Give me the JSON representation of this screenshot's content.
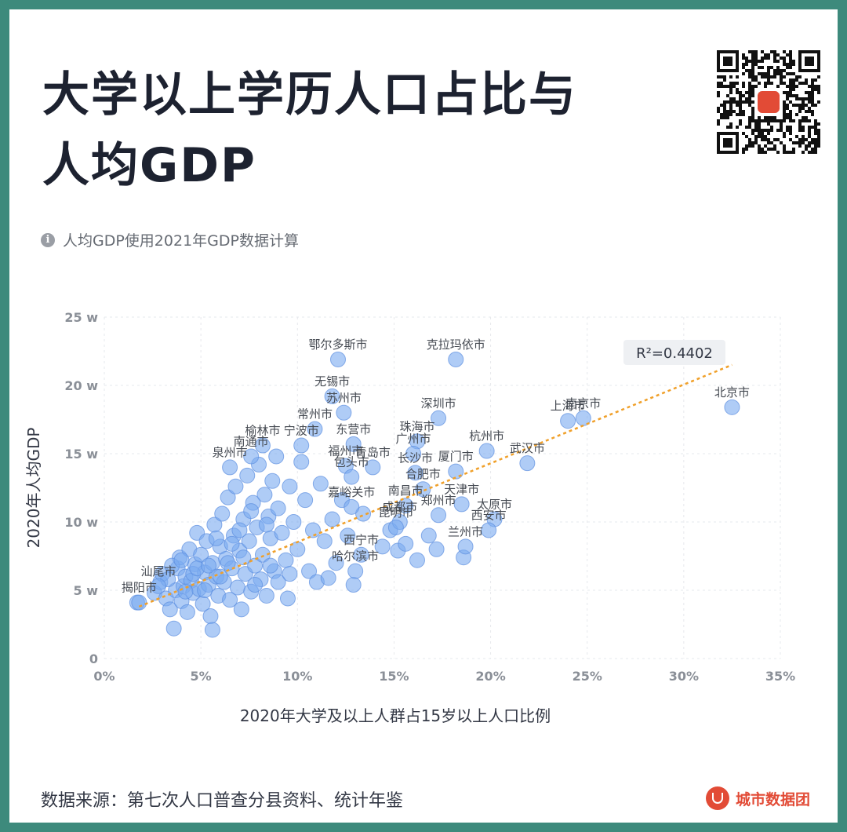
{
  "title_line1": "大学以上学历人口占比与",
  "title_line2": "人均GDP",
  "note": "人均GDP使用2021年GDP数据计算",
  "source": "数据来源：第七次人口普查分县资料、统计年鉴",
  "brand": "城市数据团",
  "icons": {
    "info": "info-icon",
    "qr": "qr-code-icon",
    "brand": "brand-logo-icon"
  },
  "colors": {
    "point": "#7aaaf0",
    "trend": "#f0a02a",
    "text": "#1d2230",
    "background": "#3d8a7c"
  },
  "chart_data": {
    "type": "scatter",
    "xlabel": "2020年大学及以上人群占15岁以上人口比例",
    "ylabel": "2020年人均GDP",
    "x_ticks": [
      "0%",
      "5%",
      "10%",
      "15%",
      "20%",
      "25%",
      "30%",
      "35%"
    ],
    "y_ticks": [
      "0",
      "5 w",
      "10 w",
      "15 w",
      "20 w",
      "25 w"
    ],
    "xlim": [
      0,
      35
    ],
    "ylim": [
      0,
      25
    ],
    "grid": true,
    "legend": "none",
    "trendline": {
      "type": "linear",
      "from": [
        1.8,
        3.8
      ],
      "to": [
        32.5,
        21.5
      ],
      "label": "R²=0.4402"
    },
    "labeled_points": [
      {
        "label": "鄂尔多斯市",
        "x": 12.1,
        "y": 21.9
      },
      {
        "label": "克拉玛依市",
        "x": 18.2,
        "y": 21.9
      },
      {
        "label": "北京市",
        "x": 32.5,
        "y": 18.4
      },
      {
        "label": "南京市",
        "x": 24.8,
        "y": 17.6
      },
      {
        "label": "上海市",
        "x": 24.0,
        "y": 17.4
      },
      {
        "label": "无锡市",
        "x": 11.8,
        "y": 19.2
      },
      {
        "label": "苏州市",
        "x": 12.4,
        "y": 18.0
      },
      {
        "label": "常州市",
        "x": 10.9,
        "y": 16.8
      },
      {
        "label": "深圳市",
        "x": 17.3,
        "y": 17.6
      },
      {
        "label": "珠海市",
        "x": 16.2,
        "y": 15.9
      },
      {
        "label": "广州市",
        "x": 16.0,
        "y": 15.0
      },
      {
        "label": "杭州市",
        "x": 19.8,
        "y": 15.2
      },
      {
        "label": "武汉市",
        "x": 21.9,
        "y": 14.3
      },
      {
        "label": "厦门市",
        "x": 18.2,
        "y": 13.7
      },
      {
        "label": "宁波市",
        "x": 10.2,
        "y": 15.6
      },
      {
        "label": "东营市",
        "x": 12.9,
        "y": 15.7
      },
      {
        "label": "福州市",
        "x": 12.5,
        "y": 14.1
      },
      {
        "label": "青岛市",
        "x": 13.9,
        "y": 14.0
      },
      {
        "label": "包头市",
        "x": 12.8,
        "y": 13.3
      },
      {
        "label": "长沙市",
        "x": 16.1,
        "y": 13.6
      },
      {
        "label": "合肥市",
        "x": 16.5,
        "y": 12.4
      },
      {
        "label": "天津市",
        "x": 18.5,
        "y": 11.3
      },
      {
        "label": "嘉峪关市",
        "x": 12.8,
        "y": 11.1
      },
      {
        "label": "南昌市",
        "x": 15.6,
        "y": 11.2
      },
      {
        "label": "成都市",
        "x": 15.3,
        "y": 10.0
      },
      {
        "label": "太原市",
        "x": 20.2,
        "y": 10.2
      },
      {
        "label": "西安市",
        "x": 19.9,
        "y": 9.4
      },
      {
        "label": "郑州市",
        "x": 17.3,
        "y": 10.5
      },
      {
        "label": "昆明市",
        "x": 15.1,
        "y": 9.6
      },
      {
        "label": "兰州市",
        "x": 18.7,
        "y": 8.2
      },
      {
        "label": "西宁市",
        "x": 13.3,
        "y": 7.6
      },
      {
        "label": "哈尔滨市",
        "x": 13.0,
        "y": 6.4
      },
      {
        "label": "榆林市",
        "x": 8.2,
        "y": 15.6
      },
      {
        "label": "南通市",
        "x": 7.6,
        "y": 14.8
      },
      {
        "label": "泉州市",
        "x": 6.5,
        "y": 14.0
      },
      {
        "label": "揭阳市",
        "x": 1.8,
        "y": 4.1
      },
      {
        "label": "汕尾市",
        "x": 2.8,
        "y": 5.3
      }
    ],
    "unlabeled_points": [
      [
        1.7,
        4.1
      ],
      [
        2.6,
        4.8
      ],
      [
        2.9,
        5.6
      ],
      [
        3.0,
        6.2
      ],
      [
        3.2,
        4.4
      ],
      [
        3.4,
        3.6
      ],
      [
        3.6,
        2.2
      ],
      [
        3.7,
        5.0
      ],
      [
        3.8,
        6.6
      ],
      [
        3.9,
        7.4
      ],
      [
        4.0,
        4.2
      ],
      [
        4.1,
        5.3
      ],
      [
        4.2,
        6.0
      ],
      [
        4.3,
        3.4
      ],
      [
        4.4,
        8.0
      ],
      [
        4.5,
        5.7
      ],
      [
        4.6,
        4.8
      ],
      [
        4.7,
        6.9
      ],
      [
        4.8,
        9.2
      ],
      [
        4.9,
        5.1
      ],
      [
        5.0,
        7.6
      ],
      [
        5.1,
        4.0
      ],
      [
        5.2,
        6.3
      ],
      [
        5.3,
        8.6
      ],
      [
        5.4,
        5.4
      ],
      [
        5.5,
        3.1
      ],
      [
        5.6,
        2.1
      ],
      [
        5.6,
        7.0
      ],
      [
        5.7,
        9.8
      ],
      [
        5.8,
        6.0
      ],
      [
        5.9,
        4.6
      ],
      [
        6.0,
        8.2
      ],
      [
        6.1,
        10.6
      ],
      [
        6.2,
        5.6
      ],
      [
        6.3,
        7.3
      ],
      [
        6.4,
        11.8
      ],
      [
        6.5,
        4.3
      ],
      [
        6.6,
        6.6
      ],
      [
        6.7,
        9.0
      ],
      [
        6.8,
        12.6
      ],
      [
        6.9,
        5.2
      ],
      [
        7.0,
        7.9
      ],
      [
        7.1,
        3.6
      ],
      [
        7.2,
        10.2
      ],
      [
        7.3,
        6.2
      ],
      [
        7.4,
        13.4
      ],
      [
        7.5,
        8.6
      ],
      [
        7.6,
        4.9
      ],
      [
        7.7,
        11.4
      ],
      [
        7.8,
        6.8
      ],
      [
        7.9,
        9.6
      ],
      [
        8.0,
        14.2
      ],
      [
        8.1,
        5.8
      ],
      [
        8.2,
        7.6
      ],
      [
        8.3,
        12.0
      ],
      [
        8.4,
        4.6
      ],
      [
        8.5,
        10.4
      ],
      [
        8.6,
        8.8
      ],
      [
        8.7,
        13.0
      ],
      [
        8.8,
        6.4
      ],
      [
        8.9,
        14.8
      ],
      [
        9.0,
        11.0
      ],
      [
        9.2,
        9.2
      ],
      [
        9.4,
        7.2
      ],
      [
        9.5,
        4.4
      ],
      [
        9.6,
        12.6
      ],
      [
        9.8,
        10.0
      ],
      [
        10.0,
        8.0
      ],
      [
        10.2,
        14.4
      ],
      [
        10.4,
        11.6
      ],
      [
        10.6,
        6.4
      ],
      [
        10.8,
        9.4
      ],
      [
        11.0,
        5.6
      ],
      [
        11.2,
        12.8
      ],
      [
        11.4,
        8.6
      ],
      [
        11.6,
        5.9
      ],
      [
        11.8,
        10.2
      ],
      [
        12.0,
        7.0
      ],
      [
        12.3,
        11.6
      ],
      [
        12.6,
        9.0
      ],
      [
        12.9,
        5.4
      ],
      [
        13.4,
        10.6
      ],
      [
        14.4,
        8.2
      ],
      [
        14.8,
        9.4
      ],
      [
        15.2,
        7.9
      ],
      [
        15.6,
        8.4
      ],
      [
        16.2,
        7.2
      ],
      [
        16.8,
        9.0
      ],
      [
        17.2,
        8.0
      ],
      [
        18.6,
        7.4
      ],
      [
        3.3,
        5.8
      ],
      [
        3.5,
        6.8
      ],
      [
        4.0,
        7.2
      ],
      [
        4.6,
        6.2
      ],
      [
        5.2,
        5.0
      ],
      [
        5.8,
        8.8
      ],
      [
        6.4,
        7.0
      ],
      [
        7.0,
        9.4
      ],
      [
        7.6,
        10.8
      ],
      [
        8.4,
        9.8
      ],
      [
        4.2,
        4.9
      ],
      [
        4.8,
        6.6
      ],
      [
        5.4,
        6.8
      ],
      [
        6.0,
        6.0
      ],
      [
        6.6,
        8.4
      ],
      [
        7.2,
        7.4
      ],
      [
        7.8,
        5.4
      ],
      [
        8.6,
        6.8
      ],
      [
        9.0,
        5.6
      ],
      [
        9.6,
        6.2
      ]
    ]
  }
}
